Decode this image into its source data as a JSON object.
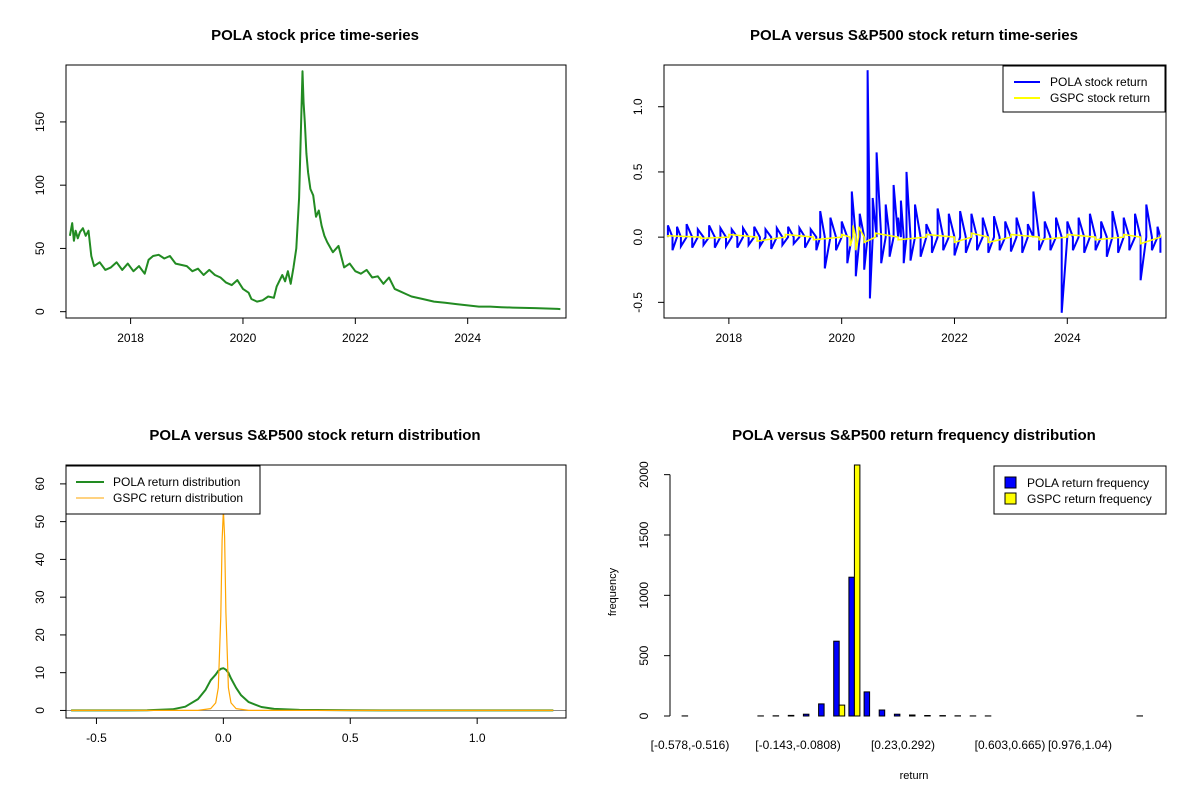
{
  "chart_data": [
    {
      "type": "line",
      "title": "POLA stock price time-series",
      "xlabel": "",
      "ylabel": "",
      "xlim": [
        2016.85,
        2025.75
      ],
      "ylim": [
        -5,
        195
      ],
      "x_ticks": [
        2018,
        2020,
        2022,
        2024
      ],
      "x_tick_labels": [
        "2018",
        "2020",
        "2022",
        "2024"
      ],
      "y_ticks": [
        0,
        50,
        100,
        150
      ],
      "y_tick_labels": [
        "0",
        "50",
        "100",
        "150"
      ],
      "grid": false,
      "colors": {
        "price": "#228B22"
      },
      "series": [
        {
          "x": [
            2016.92,
            2016.96,
            2016.99,
            2017.02,
            2017.06,
            2017.1,
            2017.15,
            2017.2,
            2017.25,
            2017.3,
            2017.35,
            2017.45,
            2017.55,
            2017.65,
            2017.75,
            2017.85,
            2017.95,
            2018.05,
            2018.15,
            2018.25,
            2018.32,
            2018.4,
            2018.5,
            2018.6,
            2018.7,
            2018.8,
            2018.9,
            2019.0,
            2019.1,
            2019.2,
            2019.3,
            2019.4,
            2019.5,
            2019.6,
            2019.7,
            2019.8,
            2019.9,
            2020.0,
            2020.1,
            2020.15,
            2020.25,
            2020.35,
            2020.45,
            2020.55,
            2020.6,
            2020.7,
            2020.75,
            2020.8,
            2020.85,
            2020.9,
            2020.95,
            2021.0,
            2021.03,
            2021.06,
            2021.08,
            2021.1,
            2021.13,
            2021.16,
            2021.2,
            2021.25,
            2021.3,
            2021.35,
            2021.4,
            2021.45,
            2021.5,
            2021.6,
            2021.7,
            2021.8,
            2021.9,
            2022.0,
            2022.1,
            2022.2,
            2022.3,
            2022.4,
            2022.5,
            2022.6,
            2022.7,
            2022.8,
            2022.9,
            2023.0,
            2023.2,
            2023.4,
            2023.6,
            2023.8,
            2024.0,
            2024.2,
            2024.4,
            2024.6,
            2024.8,
            2025.0,
            2025.2,
            2025.4,
            2025.6,
            2025.65
          ],
          "y": [
            60,
            70,
            56,
            64,
            58,
            63,
            66,
            60,
            64,
            44,
            36,
            39,
            33,
            35,
            39,
            33,
            38,
            32,
            36,
            30,
            41,
            44,
            45,
            42,
            44,
            38,
            37,
            36,
            32,
            34,
            29,
            33,
            29,
            27,
            23,
            21,
            25,
            18,
            15,
            10,
            8,
            9,
            12,
            11,
            20,
            29,
            24,
            32,
            22,
            35,
            50,
            90,
            140,
            190,
            165,
            150,
            125,
            110,
            97,
            92,
            75,
            80,
            68,
            60,
            55,
            47,
            52,
            35,
            38,
            32,
            30,
            33,
            27,
            28,
            22,
            27,
            18,
            16,
            14,
            12,
            10,
            8,
            7,
            6,
            5,
            4,
            4,
            3.5,
            3.2,
            3.0,
            2.8,
            2.5,
            2.2,
            2.0
          ]
        }
      ]
    },
    {
      "type": "line",
      "title": "POLA versus S&P500 stock return time-series",
      "xlabel": "",
      "ylabel": "",
      "xlim": [
        2016.85,
        2025.75
      ],
      "ylim": [
        -0.62,
        1.32
      ],
      "x_ticks": [
        2018,
        2020,
        2022,
        2024
      ],
      "x_tick_labels": [
        "2018",
        "2020",
        "2022",
        "2024"
      ],
      "y_ticks": [
        -0.5,
        0.0,
        0.5,
        1.0
      ],
      "y_tick_labels": [
        "-0.5",
        "0.0",
        "0.5",
        "1.0"
      ],
      "grid": false,
      "legend_position": "top-right",
      "colors": {
        "POLA": "#0000FF",
        "GSPC": "#FFFF00"
      },
      "series": [
        {
          "name": "POLA stock return",
          "color": "#0000FF",
          "x": [
            2016.92,
            2017.0,
            2017.08,
            2017.15,
            2017.25,
            2017.35,
            2017.45,
            2017.55,
            2017.65,
            2017.75,
            2017.85,
            2017.95,
            2018.05,
            2018.15,
            2018.25,
            2018.35,
            2018.45,
            2018.55,
            2018.65,
            2018.75,
            2018.85,
            2018.95,
            2019.05,
            2019.15,
            2019.25,
            2019.35,
            2019.45,
            2019.55,
            2019.62,
            2019.7,
            2019.8,
            2019.9,
            2020.0,
            2020.1,
            2020.18,
            2020.25,
            2020.32,
            2020.4,
            2020.46,
            2020.5,
            2020.55,
            2020.62,
            2020.7,
            2020.78,
            2020.85,
            2020.92,
            2021.0,
            2021.05,
            2021.1,
            2021.15,
            2021.22,
            2021.3,
            2021.4,
            2021.5,
            2021.6,
            2021.7,
            2021.8,
            2021.9,
            2022.0,
            2022.1,
            2022.2,
            2022.3,
            2022.4,
            2022.5,
            2022.6,
            2022.7,
            2022.8,
            2022.9,
            2023.0,
            2023.1,
            2023.2,
            2023.3,
            2023.4,
            2023.5,
            2023.6,
            2023.7,
            2023.8,
            2023.9,
            2024.0,
            2024.1,
            2024.2,
            2024.3,
            2024.4,
            2024.5,
            2024.6,
            2024.7,
            2024.8,
            2024.9,
            2025.0,
            2025.1,
            2025.2,
            2025.3,
            2025.4,
            2025.5,
            2025.6,
            2025.65
          ],
          "y": [
            0.09,
            -0.1,
            0.08,
            -0.07,
            0.1,
            -0.08,
            0.06,
            -0.06,
            0.09,
            -0.08,
            0.07,
            -0.07,
            0.06,
            -0.08,
            0.07,
            -0.06,
            0.08,
            -0.07,
            0.06,
            -0.09,
            0.07,
            -0.06,
            0.08,
            -0.05,
            0.07,
            -0.08,
            0.06,
            -0.1,
            0.2,
            -0.24,
            0.15,
            -0.1,
            0.12,
            -0.2,
            0.35,
            -0.3,
            0.18,
            -0.25,
            1.28,
            -0.47,
            0.3,
            0.65,
            -0.2,
            0.25,
            -0.15,
            0.4,
            0.15,
            0.28,
            -0.2,
            0.5,
            -0.18,
            0.25,
            -0.15,
            0.1,
            -0.12,
            0.22,
            -0.1,
            0.18,
            -0.14,
            0.2,
            -0.12,
            0.18,
            -0.1,
            0.15,
            -0.12,
            0.16,
            -0.1,
            0.12,
            -0.11,
            0.15,
            -0.12,
            0.1,
            0.35,
            -0.1,
            0.12,
            -0.1,
            0.15,
            -0.58,
            0.12,
            -0.1,
            0.15,
            -0.12,
            0.18,
            -0.1,
            0.12,
            -0.15,
            0.2,
            -0.12,
            0.15,
            -0.1,
            0.18,
            -0.33,
            0.25,
            -0.1,
            0.08,
            -0.12
          ]
        },
        {
          "name": "GSPC stock return",
          "color": "#FFFF00",
          "x": [
            2016.92,
            2017.5,
            2018.0,
            2018.5,
            2019.0,
            2019.5,
            2020.0,
            2020.15,
            2020.2,
            2020.25,
            2020.3,
            2020.4,
            2020.6,
            2021.0,
            2021.5,
            2022.0,
            2022.3,
            2022.6,
            2023.0,
            2023.5,
            2024.0,
            2024.5,
            2025.0,
            2025.3,
            2025.65
          ],
          "y": [
            0.01,
            -0.01,
            0.02,
            -0.03,
            0.02,
            -0.02,
            0.02,
            -0.07,
            0.09,
            -0.1,
            0.08,
            -0.04,
            0.03,
            -0.02,
            0.02,
            -0.04,
            0.03,
            -0.04,
            0.02,
            -0.02,
            0.02,
            -0.02,
            0.02,
            -0.05,
            0.02
          ]
        }
      ]
    },
    {
      "type": "line",
      "title": "POLA versus S&P500 stock return distribution",
      "xlabel": "",
      "ylabel": "",
      "xlim": [
        -0.62,
        1.35
      ],
      "ylim": [
        -2,
        65
      ],
      "x_ticks": [
        -0.5,
        0.0,
        0.5,
        1.0
      ],
      "x_tick_labels": [
        "-0.5",
        "0.0",
        "0.5",
        "1.0"
      ],
      "y_ticks": [
        0,
        10,
        20,
        30,
        40,
        50,
        60
      ],
      "y_tick_labels": [
        "0",
        "10",
        "20",
        "30",
        "40",
        "50",
        "60"
      ],
      "grid": false,
      "legend_position": "top-left",
      "colors": {
        "POLA": "#228B22",
        "GSPC": "#FFA500"
      },
      "series": [
        {
          "name": "POLA return distribution",
          "color": "#228B22",
          "x": [
            -0.6,
            -0.3,
            -0.2,
            -0.15,
            -0.1,
            -0.07,
            -0.05,
            -0.03,
            -0.02,
            -0.01,
            0.0,
            0.01,
            0.02,
            0.03,
            0.05,
            0.07,
            0.1,
            0.15,
            0.2,
            0.3,
            0.5,
            0.8,
            1.0,
            1.3
          ],
          "y": [
            0,
            0.05,
            0.3,
            1.0,
            3.0,
            5.5,
            8.0,
            9.5,
            10.5,
            11.0,
            11.2,
            10.8,
            10.0,
            8.5,
            6.0,
            4.0,
            2.2,
            0.9,
            0.4,
            0.15,
            0.05,
            0.02,
            0.02,
            0
          ]
        },
        {
          "name": "GSPC return distribution",
          "color": "#FFA500",
          "x": [
            -0.6,
            -0.1,
            -0.05,
            -0.03,
            -0.02,
            -0.01,
            -0.005,
            0.0,
            0.005,
            0.01,
            0.02,
            0.03,
            0.05,
            0.1,
            1.3
          ],
          "y": [
            0,
            0,
            0.5,
            2.0,
            6.0,
            25.0,
            45.0,
            53.0,
            46.0,
            26.0,
            6.0,
            2.0,
            0.5,
            0,
            0
          ]
        }
      ]
    },
    {
      "type": "bar",
      "title": "POLA versus S&P500 return frequency distribution",
      "xlabel": "return",
      "ylabel": "frequency",
      "ylim": [
        0,
        2080
      ],
      "y_ticks": [
        0,
        500,
        1000,
        1500,
        2000
      ],
      "y_tick_labels": [
        "0",
        "500",
        "1000",
        "1500",
        "2000"
      ],
      "x_tick_labels": [
        "[-0.578,-0.516)",
        "[-0.143,-0.0808)",
        "[0.23,0.292)",
        "[0.603,0.665)",
        "[0.976,1.04)"
      ],
      "bin_count": 31,
      "grid": false,
      "legend_position": "top-right",
      "colors": {
        "POLA": "#0000FF",
        "GSPC": "#FFFF00"
      },
      "series": [
        {
          "name": "POLA return frequency",
          "color": "#0000FF",
          "values": [
            1,
            0,
            0,
            0,
            0,
            1,
            2,
            5,
            15,
            100,
            620,
            1150,
            200,
            50,
            15,
            8,
            4,
            3,
            2,
            1,
            1,
            0,
            0,
            0,
            0,
            0,
            0,
            0,
            0,
            0,
            1
          ]
        },
        {
          "name": "GSPC return frequency",
          "color": "#FFFF00",
          "values": [
            0,
            0,
            0,
            0,
            0,
            0,
            0,
            0,
            0,
            0,
            90,
            2150,
            0,
            0,
            0,
            0,
            0,
            0,
            0,
            0,
            0,
            0,
            0,
            0,
            0,
            0,
            0,
            0,
            0,
            0,
            0
          ]
        }
      ]
    }
  ]
}
